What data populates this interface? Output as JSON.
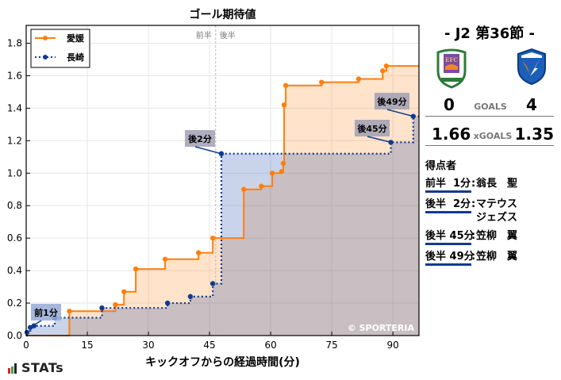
{
  "chart_data": {
    "type": "line",
    "step": true,
    "title": "ゴール期待値",
    "xlabel": "キックオフからの経過時間(分)",
    "ylabel": "",
    "xlim": [
      0,
      96.4
    ],
    "ylim": [
      0,
      1.91
    ],
    "xticks": [
      0,
      15,
      30,
      45,
      60,
      75,
      90
    ],
    "yticks": [
      0.0,
      0.2,
      0.4,
      0.6,
      0.8,
      1.0,
      1.2,
      1.4,
      1.6,
      1.8
    ],
    "grid": true,
    "legend_position": "upper left",
    "half_marker": {
      "x": 46.5,
      "labels": [
        "前半",
        "後半"
      ]
    },
    "series": [
      {
        "name": "愛媛",
        "color": "#ff7f0e",
        "style": "solid",
        "points": [
          [
            10.6,
            0.15
          ],
          [
            21.9,
            0.19
          ],
          [
            24.0,
            0.27
          ],
          [
            26.9,
            0.41
          ],
          [
            34.1,
            0.47
          ],
          [
            42.3,
            0.51
          ],
          [
            45.8,
            0.6
          ],
          [
            53.4,
            0.9
          ],
          [
            57.7,
            0.92
          ],
          [
            60.4,
            1.0
          ],
          [
            62.7,
            1.01
          ],
          [
            63.1,
            1.06
          ],
          [
            63.3,
            1.42
          ],
          [
            63.7,
            1.54
          ],
          [
            72.5,
            1.56
          ],
          [
            81.6,
            1.58
          ],
          [
            87.5,
            1.63
          ],
          [
            88.4,
            1.66
          ]
        ],
        "final": 1.66
      },
      {
        "name": "長崎",
        "color": "#0d3a94",
        "style": "dotted",
        "points": [
          [
            0.2,
            0.02
          ],
          [
            1.0,
            0.05
          ],
          [
            1.9,
            0.06
          ],
          [
            7.0,
            0.11
          ],
          [
            18.6,
            0.17
          ],
          [
            34.7,
            0.2
          ],
          [
            40.3,
            0.24
          ],
          [
            45.8,
            0.32
          ],
          [
            47.9,
            1.12
          ],
          [
            89.5,
            1.19
          ],
          [
            95.0,
            1.35
          ]
        ],
        "final": 1.35
      }
    ],
    "annotations": [
      {
        "text": "前1分",
        "x": 1.0,
        "y": 0.05
      },
      {
        "text": "後2分",
        "x": 47.9,
        "y": 1.12
      },
      {
        "text": "後45分",
        "x": 89.5,
        "y": 1.19
      },
      {
        "text": "後49分",
        "x": 95.0,
        "y": 1.35
      }
    ],
    "watermark": "© SPORTERIA"
  },
  "sidebar": {
    "round": "- J2 第36節 -",
    "home": {
      "name": "愛媛",
      "goals": "0",
      "xg": "1.66",
      "logo": "ehime-fc-crest"
    },
    "away": {
      "name": "長崎",
      "goals": "4",
      "xg": "1.35",
      "logo": "v-varen-crest"
    },
    "goals_label": "GOALS",
    "xgoals_label": "xGOALS",
    "scorers_header": "得点者",
    "scorers": [
      {
        "time": "前半  1分",
        "name": "翁長　聖"
      },
      {
        "time": "後半  2分",
        "name": "マテウス\nジェズス"
      },
      {
        "time": "後半 45分",
        "name": "笠柳　翼"
      },
      {
        "time": "後半 49分",
        "name": "笠柳　翼"
      }
    ]
  },
  "branding": {
    "logo_text": "STATs"
  }
}
